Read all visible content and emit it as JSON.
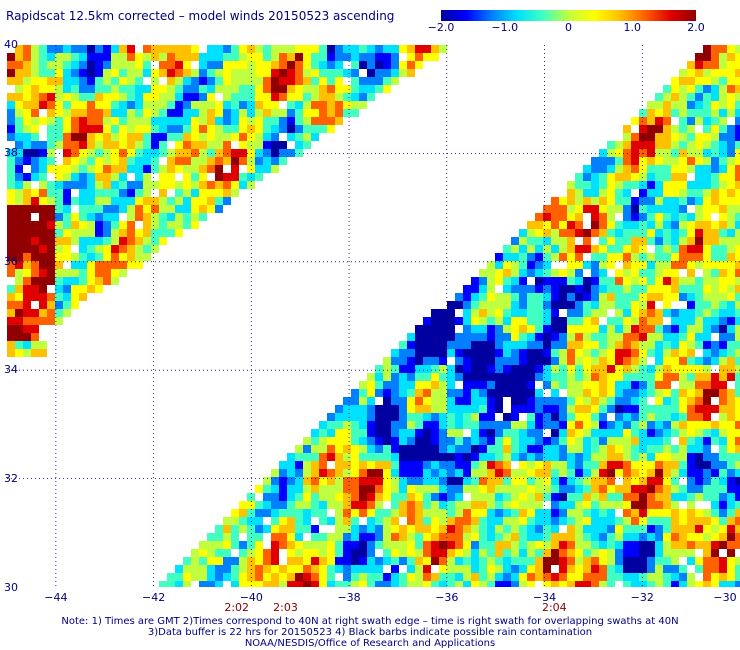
{
  "title": "Rapidscat 12.5km corrected – model winds 20150523 ascending",
  "colorbar": {
    "ticks": [
      "−2.0",
      "−1.0",
      "0",
      "1.0",
      "2.0"
    ],
    "tick_values": [
      -2.0,
      -1.0,
      0,
      1.0,
      2.0
    ],
    "min": -2.0,
    "max": 2.0,
    "colors": [
      "#0000a0",
      "#0000ff",
      "#0080ff",
      "#00e0ff",
      "#40ffc0",
      "#c0ff40",
      "#ffff00",
      "#ffc000",
      "#ff6000",
      "#e00000",
      "#900000"
    ]
  },
  "chart_data": {
    "type": "heatmap",
    "lon_range": [
      -45,
      -30
    ],
    "lat_range": [
      30,
      40
    ],
    "lat_ticks": [
      "40",
      "38",
      "36",
      "34",
      "32",
      "30"
    ],
    "lat_values": [
      40,
      38,
      36,
      34,
      32,
      30
    ],
    "lon_ticks": [
      "−44",
      "−42",
      "−40",
      "−38",
      "−36",
      "−34",
      "−32",
      "−30"
    ],
    "lon_values": [
      -44,
      -42,
      -40,
      -38,
      -36,
      -34,
      -32,
      -30
    ],
    "time_labels": [
      {
        "text": "2:02",
        "lon": -40.3
      },
      {
        "text": "2:03",
        "lon": -39.3
      },
      {
        "text": "2:04",
        "lon": -33.8
      }
    ],
    "gridlines": true
  },
  "notes": [
    "Note: 1) Times are GMT 2)Times correspond to 40N at right swath edge – time is right swath for overlapping swaths at 40N",
    "3)Data buffer is 22 hrs for 20150523 4) Black barbs indicate possible rain contamination",
    "NOAA/NESDIS/Office of Research and Applications"
  ]
}
